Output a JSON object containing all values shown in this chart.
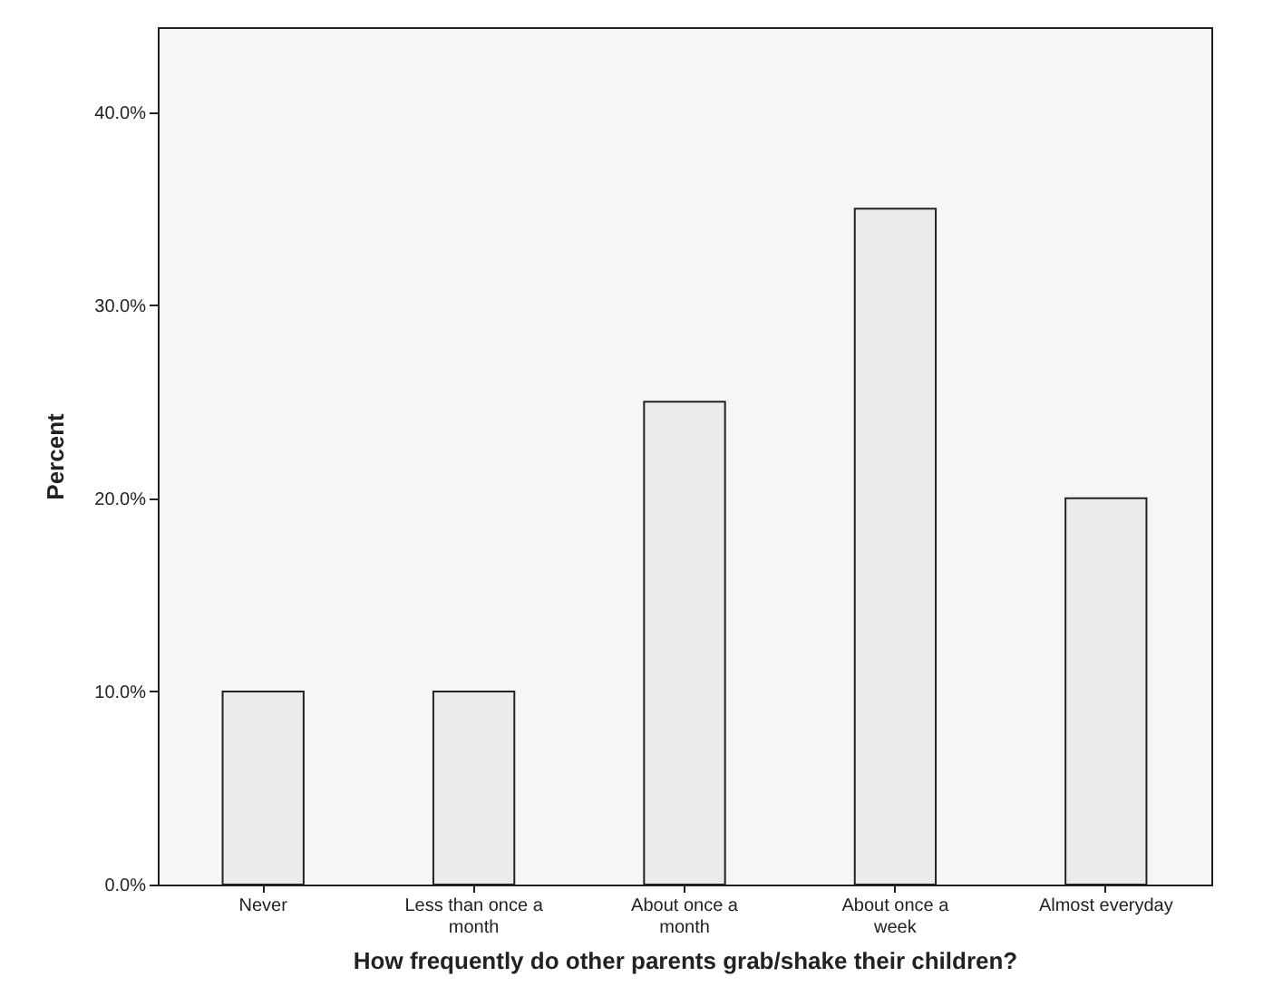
{
  "chart_data": {
    "type": "bar",
    "xlabel": "How frequently do other parents grab/shake their children?",
    "ylabel": "Percent",
    "categories": [
      "Never",
      "Less than once a month",
      "About once a month",
      "About once a week",
      "Almost everyday"
    ],
    "values": [
      10,
      10,
      25,
      35,
      20
    ],
    "color": "#ebebeb",
    "ylim": [
      0,
      44.4
    ],
    "yticks": [
      {
        "value": 0,
        "label": "0.0%"
      },
      {
        "value": 10,
        "label": "10.0%"
      },
      {
        "value": 20,
        "label": "20.0%"
      },
      {
        "value": 30,
        "label": "30.0%"
      },
      {
        "value": 40,
        "label": "40.0%"
      }
    ],
    "grid": false
  }
}
